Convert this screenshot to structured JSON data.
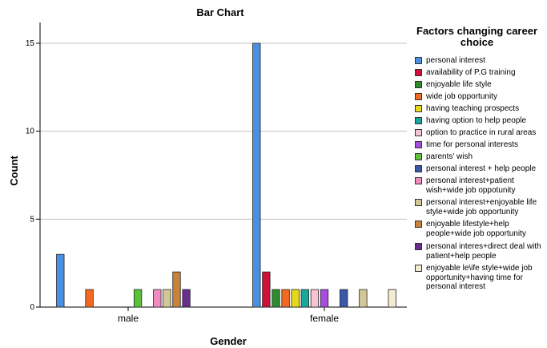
{
  "chart_data": {
    "type": "bar",
    "title": "Bar Chart",
    "xlabel": "Gender",
    "ylabel": "Count",
    "ylim": [
      0,
      16
    ],
    "yticks": [
      "0",
      "5",
      "10",
      "15"
    ],
    "grid": true,
    "legend_title": "Factors changing career choice",
    "legend_position": "right",
    "categories": [
      "male",
      "female"
    ],
    "series": [
      {
        "name": "personal interest",
        "color": "#4a90e2",
        "values": [
          3,
          15
        ]
      },
      {
        "name": "availability of P.G training",
        "color": "#d0103a",
        "values": [
          0,
          2
        ]
      },
      {
        "name": "enjoyable life style",
        "color": "#2e8b2e",
        "values": [
          0,
          1
        ]
      },
      {
        "name": "wide job opportunity",
        "color": "#f26a21",
        "values": [
          1,
          1
        ]
      },
      {
        "name": "having teaching prospects",
        "color": "#e8d81a",
        "values": [
          0,
          1
        ]
      },
      {
        "name": "having option to help people",
        "color": "#1aa89a",
        "values": [
          0,
          1
        ]
      },
      {
        "name": "option to practice in rural areas",
        "color": "#f7c4d6",
        "values": [
          0,
          1
        ]
      },
      {
        "name": "time for personal interests",
        "color": "#a64de0",
        "values": [
          0,
          1
        ]
      },
      {
        "name": "parents' wish",
        "color": "#5cc23a",
        "values": [
          1,
          0
        ]
      },
      {
        "name": "personal interest + help people",
        "color": "#3a58a8",
        "values": [
          0,
          1
        ]
      },
      {
        "name": "personal interest+patient wish+wide job oppotunity",
        "color": "#f08cc0",
        "values": [
          1,
          0
        ]
      },
      {
        "name": "personal interest+enjoyable life style+wide job opportunity",
        "color": "#d2c896",
        "values": [
          1,
          1
        ]
      },
      {
        "name": "enjoyable lifestyle+help people+wide job opportunity",
        "color": "#c8823a",
        "values": [
          2,
          0
        ]
      },
      {
        "name": "personal interes+direct deal with patient+help people",
        "color": "#6a2e8e",
        "values": [
          1,
          0
        ]
      },
      {
        "name": "enjoyable le\\ife style+wide job opportunity+having time for personal interest",
        "color": "#f4ecd2",
        "values": [
          0,
          1
        ]
      }
    ]
  }
}
